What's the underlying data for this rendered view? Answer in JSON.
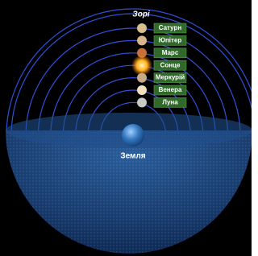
{
  "stars_label": "Зорі",
  "earth_label": "Земля",
  "bodies": [
    {
      "label": "Сатурн"
    },
    {
      "label": "Юпітер"
    },
    {
      "label": "Марс"
    },
    {
      "label": "Сонце"
    },
    {
      "label": "Меркурій"
    },
    {
      "label": "Венера"
    },
    {
      "label": "Луна"
    }
  ]
}
